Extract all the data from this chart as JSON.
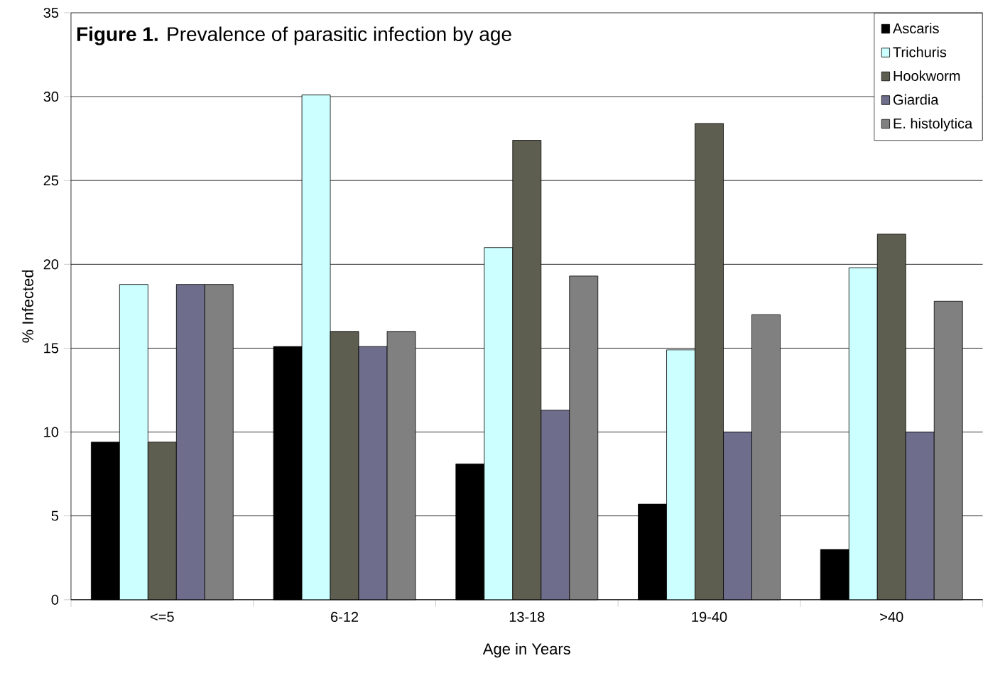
{
  "chart_data": {
    "type": "bar",
    "title": "**Figure 1.** Prevalence of parasitic infection by age",
    "xlabel": "Age in Years",
    "ylabel": "% Infected",
    "categories": [
      "<=5",
      "6-12",
      "13-18",
      "19-40",
      ">40"
    ],
    "series": [
      {
        "name": "Ascaris",
        "color": "#000000",
        "values": [
          9.4,
          15.1,
          8.1,
          5.7,
          3.0
        ]
      },
      {
        "name": "Trichuris",
        "color": "#ccffff",
        "values": [
          18.8,
          30.1,
          21.0,
          14.9,
          19.8
        ]
      },
      {
        "name": "Hookworm",
        "color": "#5e5e50",
        "values": [
          9.4,
          16.0,
          27.4,
          28.4,
          21.8
        ]
      },
      {
        "name": "Giardia",
        "color": "#6e6e8c",
        "values": [
          18.8,
          15.1,
          11.3,
          10.0,
          10.0
        ]
      },
      {
        "name": "E. histolytica",
        "color": "#808080",
        "values": [
          18.8,
          16.0,
          19.3,
          17.0,
          17.8
        ]
      }
    ],
    "ylim": [
      0,
      35
    ],
    "yticks": [
      0,
      5,
      10,
      15,
      20,
      25,
      30,
      35
    ],
    "grid": "y",
    "legend": "top right"
  }
}
